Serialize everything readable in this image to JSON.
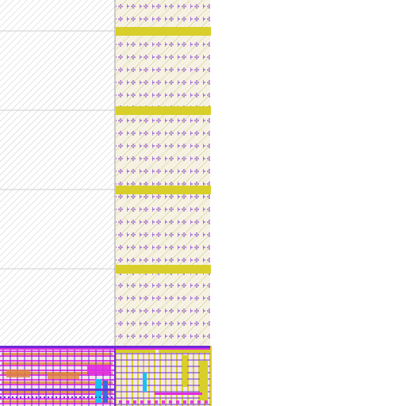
{
  "colors": {
    "background": "#ffffff",
    "hatch": "#c9c9c9",
    "grid_line": "#cfcfcf",
    "fill_pattern_bg": "#f7f4e6",
    "fill_pattern_dot": "#7a2bd6",
    "power_rail": "#d8cf2a",
    "metal_magenta": "#e02be0",
    "metal_purple": "#6b2bd6",
    "metal_orange": "#e0853a",
    "metal_yellow": "#d8cf2a",
    "via_cyan": "#19c2f0",
    "metal_blue": "#3a6be0"
  },
  "layers": [
    {
      "name": "hatch-region",
      "icon": "diagonal-hatch"
    },
    {
      "name": "fill-cell-column",
      "icon": "plus-pattern"
    },
    {
      "name": "power-rails",
      "icon": "horizontal-band"
    },
    {
      "name": "standard-cells",
      "icon": "routing-mesh"
    }
  ]
}
